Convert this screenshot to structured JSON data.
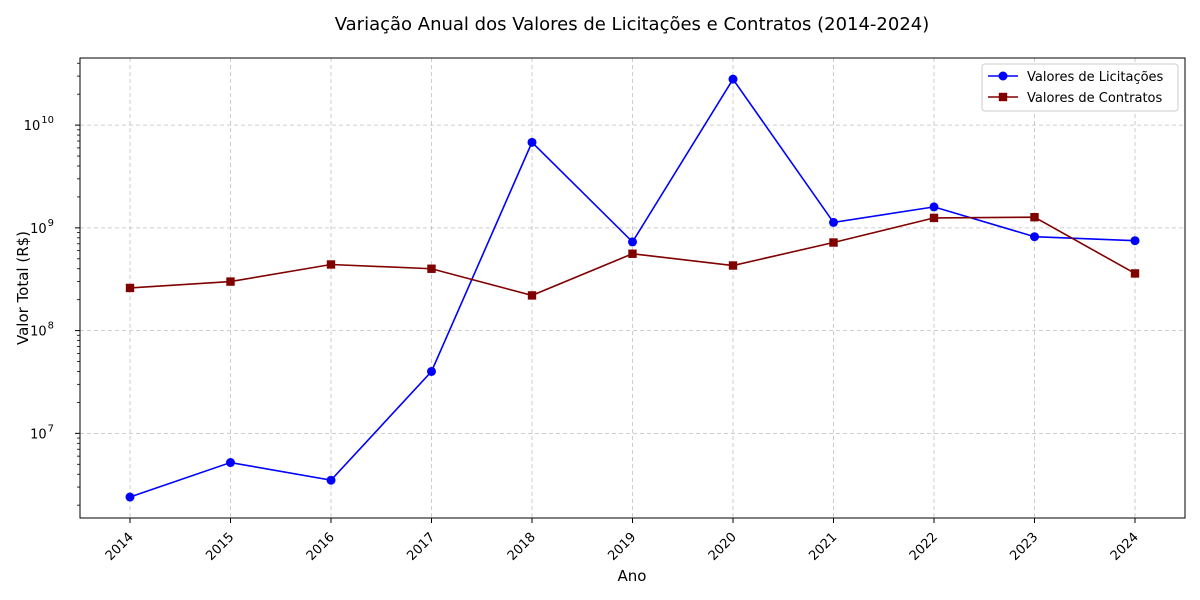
{
  "chart_data": {
    "type": "line",
    "title": "Variação Anual dos Valores de Licitações e Contratos (2014-2024)",
    "xlabel": "Ano",
    "ylabel": "Valor Total (R$)",
    "y_scale": "log",
    "ylim": [
      1500000,
      45000000000
    ],
    "grid": true,
    "legend_position": "top-right",
    "categories": [
      "2014",
      "2015",
      "2016",
      "2017",
      "2018",
      "2019",
      "2020",
      "2021",
      "2022",
      "2023",
      "2024"
    ],
    "y_ticks": [
      {
        "value": 10000000,
        "base": "10",
        "exp": "7"
      },
      {
        "value": 100000000,
        "base": "10",
        "exp": "8"
      },
      {
        "value": 1000000000,
        "base": "10",
        "exp": "9"
      },
      {
        "value": 10000000000,
        "base": "10",
        "exp": "10"
      }
    ],
    "series": [
      {
        "name": "Valores de Licitações",
        "color": "#0000ff",
        "marker": "circle",
        "values": [
          2400000,
          5200000,
          3500000,
          40000000,
          6800000000,
          730000000,
          28000000000,
          1130000000,
          1600000000,
          820000000,
          750000000
        ]
      },
      {
        "name": "Valores de Contratos",
        "color": "#800000",
        "marker": "square",
        "values": [
          260000000,
          300000000,
          440000000,
          400000000,
          220000000,
          560000000,
          430000000,
          720000000,
          1250000000,
          1270000000,
          360000000
        ]
      }
    ]
  }
}
